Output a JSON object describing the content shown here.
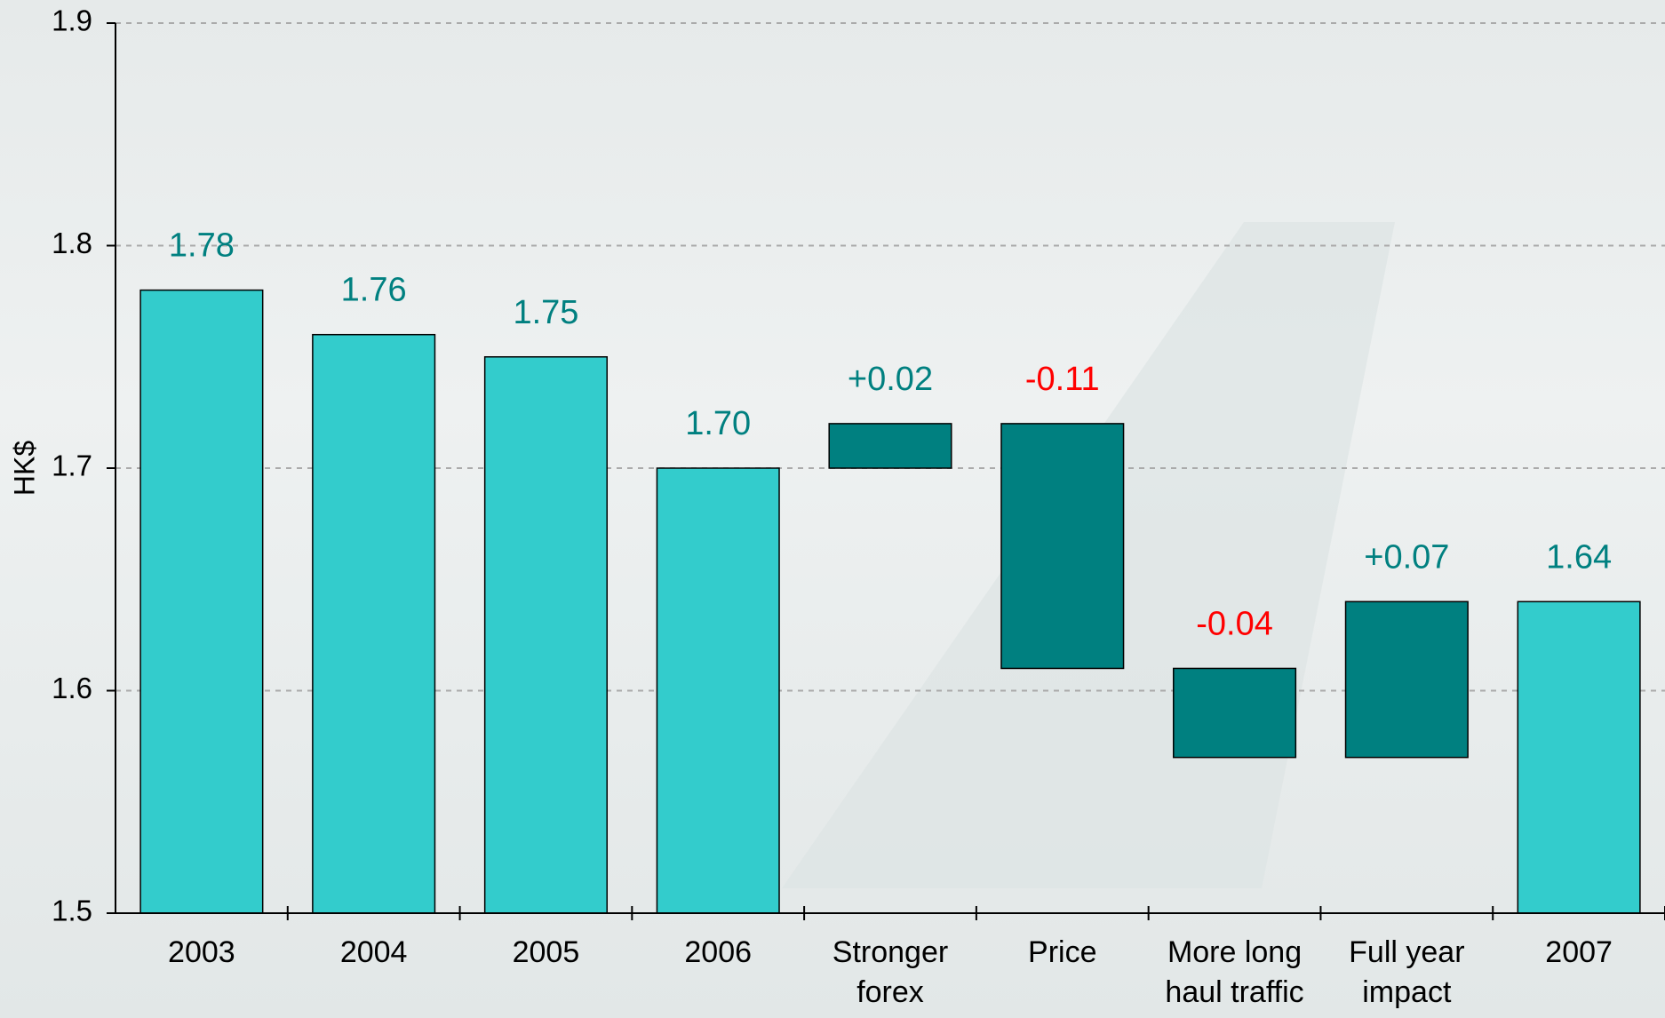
{
  "chart_data": {
    "type": "waterfall",
    "y_label": "HK$",
    "categories": [
      "2003",
      "2004",
      "2005",
      "2006",
      "Stronger forex",
      "Price",
      "More long haul traffic",
      "Full year impact",
      "2007"
    ],
    "values": [
      1.78,
      1.76,
      1.75,
      1.7,
      0.02,
      -0.11,
      -0.04,
      0.07,
      1.64
    ],
    "value_labels": [
      "1.78",
      "1.76",
      "1.75",
      "1.70",
      "+0.02",
      "-0.11",
      "-0.04",
      "+0.07",
      "1.64"
    ],
    "totals": [
      true,
      true,
      true,
      true,
      false,
      false,
      false,
      false,
      true
    ],
    "bar_colors": [
      "#33cccc",
      "#33cccc",
      "#33cccc",
      "#33cccc",
      "#008080",
      "#008080",
      "#008080",
      "#008080",
      "#33cccc"
    ],
    "label_colors": [
      "#008080",
      "#008080",
      "#008080",
      "#008080",
      "#008080",
      "#ff0000",
      "#ff0000",
      "#008080",
      "#008080"
    ],
    "ylim": [
      1.5,
      1.9
    ],
    "yticks": [
      1.5,
      1.6,
      1.7,
      1.8,
      1.9
    ],
    "grid": true
  }
}
